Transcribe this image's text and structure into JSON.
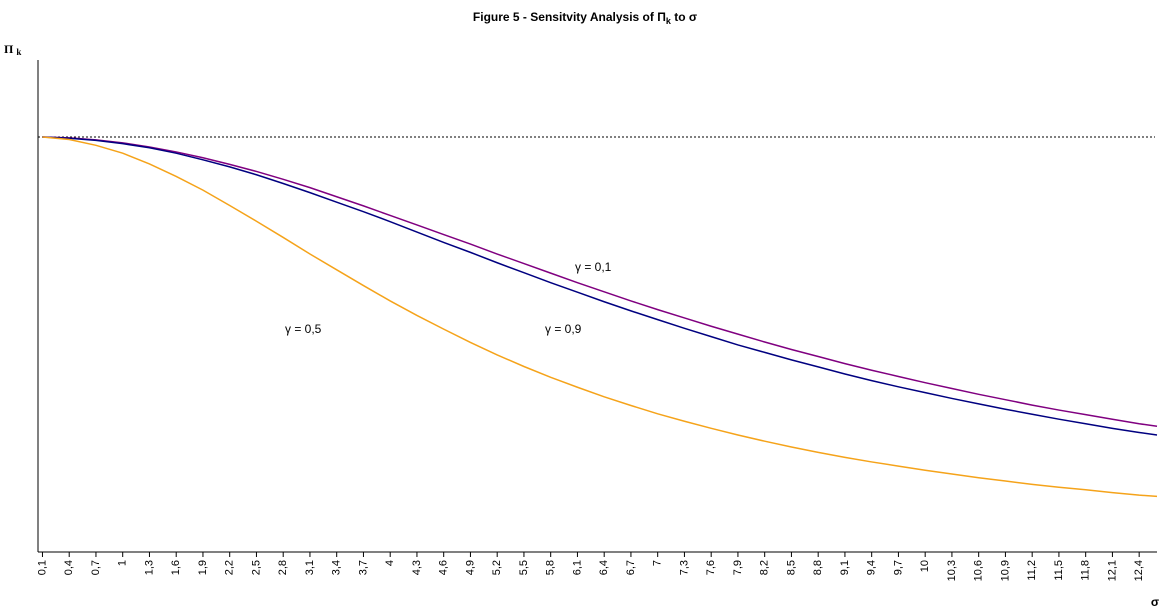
{
  "chart_data": {
    "type": "line",
    "title_parts": [
      "Figure 5 - Sensitvity Analysis of Π",
      "k",
      " to σ"
    ],
    "ylabel_parts": [
      "Π",
      "k"
    ],
    "xlabel": "σ",
    "x": [
      0.1,
      0.4,
      0.7,
      1,
      1.3,
      1.6,
      1.9,
      2.2,
      2.5,
      2.8,
      3.1,
      3.4,
      3.7,
      4,
      4.3,
      4.6,
      4.9,
      5.2,
      5.5,
      5.8,
      6.1,
      6.4,
      6.7,
      7,
      7.3,
      7.6,
      7.9,
      8.2,
      8.5,
      8.8,
      9.1,
      9.4,
      9.7,
      10,
      10.3,
      10.6,
      10.9,
      11.2,
      11.5,
      11.8,
      12.1,
      12.4,
      12.6
    ],
    "series": [
      {
        "color": "#800080",
        "values": [
          1.0,
          0.998,
          0.993,
          0.986,
          0.976,
          0.964,
          0.95,
          0.934,
          0.917,
          0.898,
          0.878,
          0.856,
          0.834,
          0.811,
          0.788,
          0.765,
          0.742,
          0.718,
          0.695,
          0.672,
          0.649,
          0.627,
          0.605,
          0.584,
          0.564,
          0.544,
          0.525,
          0.506,
          0.488,
          0.471,
          0.454,
          0.438,
          0.423,
          0.408,
          0.394,
          0.38,
          0.367,
          0.354,
          0.342,
          0.331,
          0.32,
          0.309,
          0.303
        ]
      },
      {
        "color": "#000080",
        "values": [
          1.0,
          0.997,
          0.992,
          0.984,
          0.974,
          0.961,
          0.945,
          0.928,
          0.909,
          0.888,
          0.866,
          0.843,
          0.82,
          0.796,
          0.771,
          0.746,
          0.722,
          0.697,
          0.673,
          0.649,
          0.626,
          0.603,
          0.581,
          0.56,
          0.539,
          0.519,
          0.499,
          0.481,
          0.463,
          0.446,
          0.429,
          0.413,
          0.398,
          0.384,
          0.37,
          0.357,
          0.344,
          0.332,
          0.32,
          0.309,
          0.298,
          0.288,
          0.282
        ]
      },
      {
        "color": "#F5A31A",
        "values": [
          1.0,
          0.994,
          0.98,
          0.961,
          0.935,
          0.905,
          0.872,
          0.835,
          0.797,
          0.758,
          0.718,
          0.68,
          0.642,
          0.605,
          0.57,
          0.537,
          0.505,
          0.475,
          0.447,
          0.421,
          0.397,
          0.374,
          0.353,
          0.333,
          0.315,
          0.298,
          0.282,
          0.267,
          0.253,
          0.24,
          0.228,
          0.217,
          0.207,
          0.197,
          0.188,
          0.179,
          0.171,
          0.163,
          0.156,
          0.15,
          0.143,
          0.137,
          0.134
        ]
      }
    ],
    "annotations": [
      "γ = 0,1",
      "γ = 0,9",
      "γ = 0,5"
    ],
    "reference_line": 1,
    "xlim": [
      0.05,
      12.6
    ],
    "ylim": [
      0,
      1.2
    ],
    "xticks": [
      {
        "value": 0.1,
        "label": "0,1"
      },
      {
        "value": 0.4,
        "label": "0,4"
      },
      {
        "value": 0.7,
        "label": "0,7"
      },
      {
        "value": 1,
        "label": "1"
      },
      {
        "value": 1.3,
        "label": "1,3"
      },
      {
        "value": 1.6,
        "label": "1,6"
      },
      {
        "value": 1.9,
        "label": "1,9"
      },
      {
        "value": 2.2,
        "label": "2,2"
      },
      {
        "value": 2.5,
        "label": "2,5"
      },
      {
        "value": 2.8,
        "label": "2,8"
      },
      {
        "value": 3.1,
        "label": "3,1"
      },
      {
        "value": 3.4,
        "label": "3,4"
      },
      {
        "value": 3.7,
        "label": "3,7"
      },
      {
        "value": 4,
        "label": "4"
      },
      {
        "value": 4.3,
        "label": "4,3"
      },
      {
        "value": 4.6,
        "label": "4,6"
      },
      {
        "value": 4.9,
        "label": "4,9"
      },
      {
        "value": 5.2,
        "label": "5,2"
      },
      {
        "value": 5.5,
        "label": "5,5"
      },
      {
        "value": 5.8,
        "label": "5,8"
      },
      {
        "value": 6.1,
        "label": "6,1"
      },
      {
        "value": 6.4,
        "label": "6,4"
      },
      {
        "value": 6.7,
        "label": "6,7"
      },
      {
        "value": 7,
        "label": "7"
      },
      {
        "value": 7.3,
        "label": "7,3"
      },
      {
        "value": 7.6,
        "label": "7,6"
      },
      {
        "value": 7.9,
        "label": "7,9"
      },
      {
        "value": 8.2,
        "label": "8,2"
      },
      {
        "value": 8.5,
        "label": "8,5"
      },
      {
        "value": 8.8,
        "label": "8,8"
      },
      {
        "value": 9.1,
        "label": "9,1"
      },
      {
        "value": 9.4,
        "label": "9,4"
      },
      {
        "value": 9.7,
        "label": "9,7"
      },
      {
        "value": 10,
        "label": "10"
      },
      {
        "value": 10.3,
        "label": "10,3"
      },
      {
        "value": 10.6,
        "label": "10,6"
      },
      {
        "value": 10.9,
        "label": "10,9"
      },
      {
        "value": 11.2,
        "label": "11,2"
      },
      {
        "value": 11.5,
        "label": "11,5"
      },
      {
        "value": 11.8,
        "label": "11,8"
      },
      {
        "value": 12.1,
        "label": "12,1"
      },
      {
        "value": 12.4,
        "label": "12,4"
      }
    ]
  }
}
